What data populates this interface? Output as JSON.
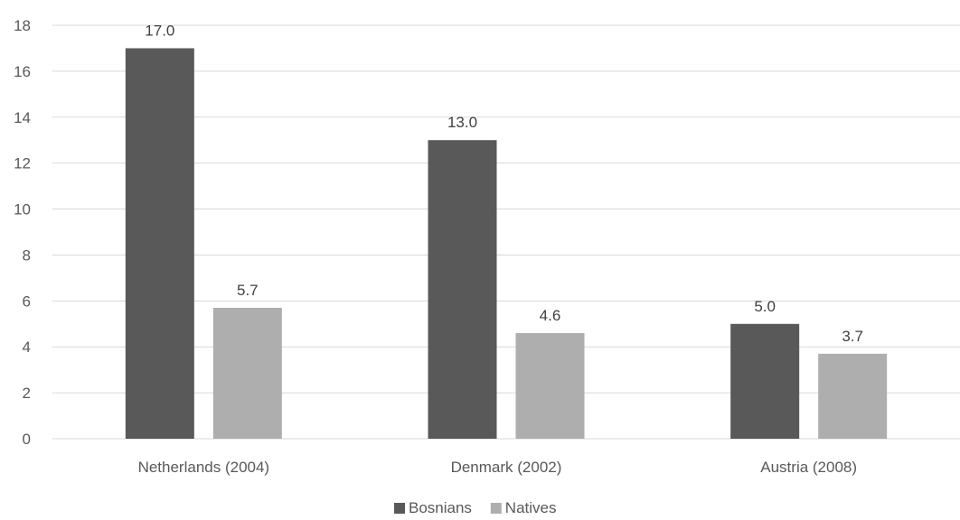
{
  "chart_data": {
    "type": "bar",
    "categories": [
      "Netherlands (2004)",
      "Denmark (2002)",
      "Austria (2008)"
    ],
    "series": [
      {
        "name": "Bosnians",
        "values": [
          17.0,
          13.0,
          5.0
        ],
        "color": "#595959"
      },
      {
        "name": "Natives",
        "values": [
          5.7,
          4.6,
          3.7
        ],
        "color": "#aeaeae"
      }
    ],
    "data_labels": [
      [
        "17.0",
        "13.0",
        "5.0"
      ],
      [
        "5.7",
        "4.6",
        "3.7"
      ]
    ],
    "ylim": [
      0,
      18
    ],
    "yticks": [
      "0",
      "2",
      "4",
      "6",
      "8",
      "10",
      "12",
      "14",
      "16",
      "18"
    ],
    "grid": true,
    "legend_position": "bottom"
  }
}
